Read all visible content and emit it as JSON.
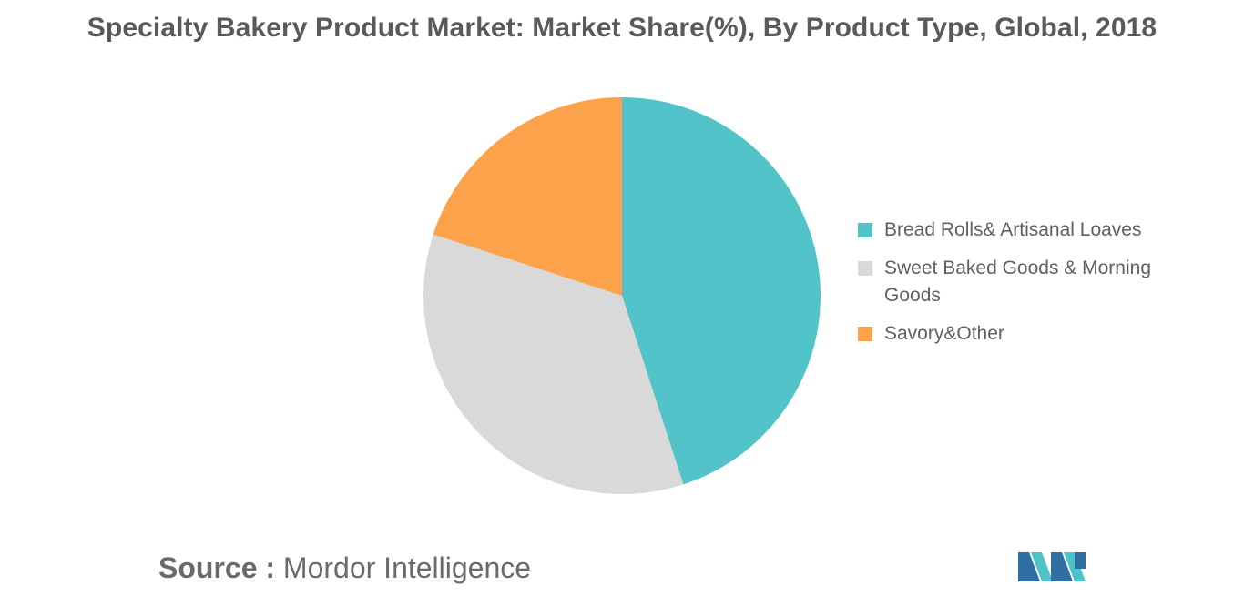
{
  "chart_data": {
    "type": "pie",
    "title": "Specialty Bakery Product Market: Market Share(%), By Product Type, Global, 2018",
    "categories": [
      "Bread Rolls& Artisanal Loaves",
      "Sweet Baked Goods & Morning Goods",
      "Savory&Other"
    ],
    "values": [
      45,
      35,
      20
    ],
    "colors": [
      "#52c4c9",
      "#d9d9d9",
      "#fba24a"
    ],
    "legend_position": "right"
  },
  "source": {
    "prefix": "Source :",
    "name": "Mordor Intelligence"
  },
  "logo": {
    "icon": "mordor-intelligence-logo-icon",
    "colors": [
      "#2f6fa3",
      "#4cc3c9"
    ]
  }
}
